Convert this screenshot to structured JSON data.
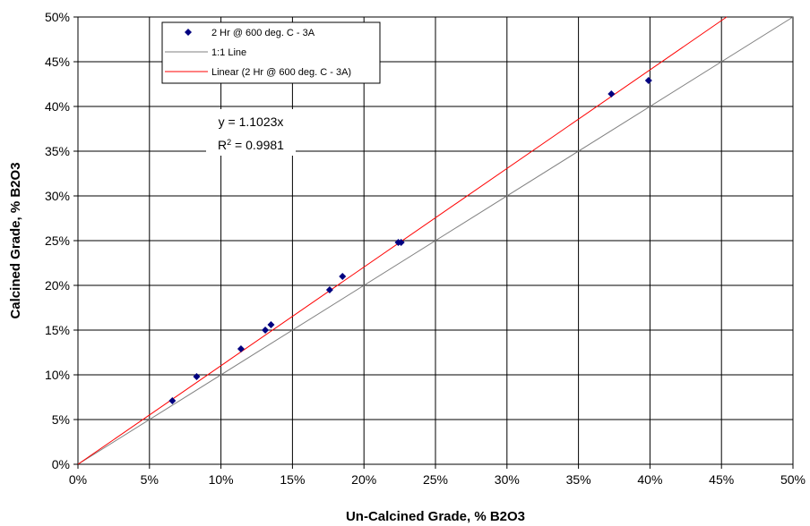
{
  "chart_data": {
    "type": "scatter",
    "title": "",
    "xlabel": "Un-Calcined Grade, % B2O3",
    "ylabel": "Calcined Grade, % B2O3",
    "xlim": [
      0,
      50
    ],
    "ylim": [
      0,
      50
    ],
    "x_ticks": [
      "0%",
      "5%",
      "10%",
      "15%",
      "20%",
      "25%",
      "30%",
      "35%",
      "40%",
      "45%",
      "50%"
    ],
    "y_ticks": [
      "0%",
      "5%",
      "10%",
      "15%",
      "20%",
      "25%",
      "30%",
      "35%",
      "40%",
      "45%",
      "50%"
    ],
    "grid": true,
    "legend_position": "top-left",
    "series": [
      {
        "name": "2 Hr @ 600 deg. C - 3A",
        "kind": "scatter",
        "marker": "diamond",
        "color": "#000080",
        "x": [
          6.6,
          8.3,
          11.4,
          13.1,
          13.5,
          17.6,
          18.5,
          22.4,
          22.6,
          37.3,
          39.9
        ],
        "y": [
          7.1,
          9.8,
          12.9,
          15.0,
          15.6,
          19.5,
          21.0,
          24.8,
          24.8,
          41.4,
          42.9
        ]
      },
      {
        "name": "1:1 Line",
        "kind": "line",
        "color": "#808080",
        "x": [
          0,
          50
        ],
        "y": [
          0,
          50
        ]
      },
      {
        "name": "Linear (2 Hr @ 600 deg. C - 3A)",
        "kind": "line",
        "color": "#ff0000",
        "slope": 1.1023,
        "x": [
          0,
          45.36
        ],
        "y": [
          0,
          50
        ]
      }
    ],
    "annotations": {
      "equation": "y = 1.1023x",
      "r2_label": "R",
      "r2_sup": "2",
      "r2_value": " = 0.9981"
    }
  }
}
